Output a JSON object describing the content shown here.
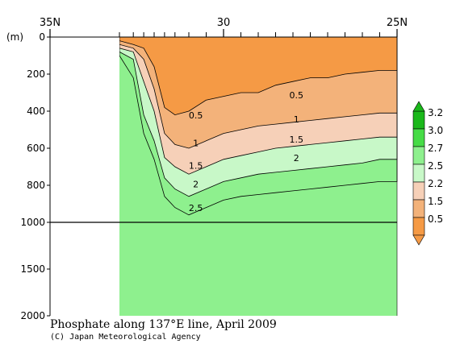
{
  "caption": {
    "title": "Phosphate along 137°E line, April 2009",
    "credit": "(C) Japan Meteorological Agency"
  },
  "chart_data": {
    "type": "contour",
    "x_axis": {
      "position": "top",
      "ticks": [
        {
          "value": 35,
          "label": "35N"
        },
        {
          "value": 30,
          "label": "30"
        },
        {
          "value": 25,
          "label": "25N"
        }
      ],
      "range": [
        35,
        25
      ],
      "stations": [
        33.0,
        32.6,
        32.3,
        32.0,
        31.7,
        31.4,
        31.0,
        30.5,
        30.0,
        29.5,
        29.0,
        28.5,
        28.0,
        27.5,
        27.0,
        26.5,
        26.0,
        25.5
      ]
    },
    "y_axis": {
      "unit": "(m)",
      "ticks": [
        {
          "value": 0,
          "label": "0"
        },
        {
          "value": 200,
          "label": "200"
        },
        {
          "value": 400,
          "label": "400"
        },
        {
          "value": 600,
          "label": "600"
        },
        {
          "value": 800,
          "label": "800"
        },
        {
          "value": 1000,
          "label": "1000"
        },
        {
          "value": 1500,
          "label": "1500"
        },
        {
          "value": 2000,
          "label": "2000"
        }
      ],
      "range": [
        0,
        2000
      ],
      "scale_break_depth": 1000
    },
    "colorbar": {
      "levels": [
        "3.2",
        "3.0",
        "2.7",
        "2.5",
        "2.2",
        "1.5",
        "0.5"
      ],
      "colors": [
        "#1ab81a",
        "#46dc46",
        "#8ef08e",
        "#c8f8c8",
        "#f6d0b8",
        "#f3b27a",
        "#f59a45"
      ]
    },
    "contour_labels": [
      {
        "text": "0.5",
        "lat": 30.8,
        "depth": 440
      },
      {
        "text": "1",
        "lat": 30.8,
        "depth": 590
      },
      {
        "text": "1.5",
        "lat": 30.8,
        "depth": 710
      },
      {
        "text": "2",
        "lat": 30.8,
        "depth": 810
      },
      {
        "text": "2.5",
        "lat": 30.8,
        "depth": 940
      },
      {
        "text": "0.5",
        "lat": 27.9,
        "depth": 330
      },
      {
        "text": "1",
        "lat": 27.9,
        "depth": 460
      },
      {
        "text": "1.5",
        "lat": 27.9,
        "depth": 570
      },
      {
        "text": "2",
        "lat": 27.9,
        "depth": 670
      }
    ],
    "boundaries": [
      {
        "level": 0.5,
        "color": "#f59a45",
        "depths": [
          20,
          40,
          60,
          160,
          380,
          420,
          400,
          340,
          320,
          300,
          300,
          260,
          240,
          220,
          220,
          200,
          190,
          180
        ]
      },
      {
        "level": 1.0,
        "color": "#f3b27a",
        "depths": [
          40,
          60,
          120,
          280,
          520,
          580,
          600,
          560,
          520,
          500,
          480,
          470,
          460,
          450,
          440,
          430,
          420,
          410
        ]
      },
      {
        "level": 1.5,
        "color": "#f6d0b8",
        "depths": [
          60,
          80,
          240,
          400,
          650,
          700,
          740,
          700,
          660,
          640,
          620,
          600,
          590,
          580,
          570,
          560,
          550,
          540
        ]
      },
      {
        "level": 2.2,
        "color": "#c8f8c8",
        "depths": [
          80,
          120,
          420,
          560,
          760,
          820,
          860,
          820,
          780,
          760,
          740,
          730,
          720,
          710,
          700,
          690,
          680,
          660
        ]
      },
      {
        "level": 2.5,
        "color": "#8ef08e",
        "depths": [
          100,
          220,
          520,
          660,
          860,
          920,
          960,
          920,
          880,
          860,
          850,
          840,
          830,
          820,
          810,
          800,
          790,
          780
        ]
      }
    ],
    "land_mask": {
      "lat_start": 35,
      "lat_end": 33
    }
  }
}
